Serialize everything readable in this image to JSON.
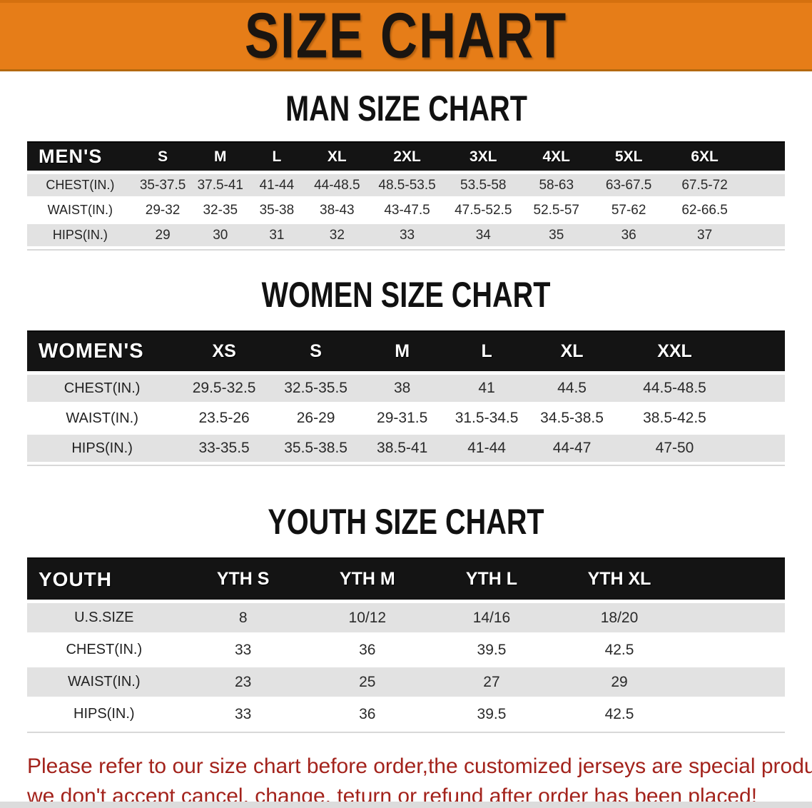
{
  "banner": {
    "title": "SIZE CHART"
  },
  "sections": [
    {
      "key": "mens",
      "heading": "MAN SIZE CHART",
      "header": [
        "MEN'S",
        "S",
        "M",
        "L",
        "XL",
        "2XL",
        "3XL",
        "4XL",
        "5XL",
        "6XL"
      ],
      "rows": [
        {
          "label": "CHEST(IN.)",
          "values": [
            "35-37.5",
            "37.5-41",
            "41-44",
            "44-48.5",
            "48.5-53.5",
            "53.5-58",
            "58-63",
            "63-67.5",
            "67.5-72"
          ]
        },
        {
          "label": "WAIST(IN.)",
          "values": [
            "29-32",
            "32-35",
            "35-38",
            "38-43",
            "43-47.5",
            "47.5-52.5",
            "52.5-57",
            "57-62",
            "62-66.5"
          ]
        },
        {
          "label": "HIPS(IN.)",
          "values": [
            "29",
            "30",
            "31",
            "32",
            "33",
            "34",
            "35",
            "36",
            "37"
          ]
        }
      ]
    },
    {
      "key": "womens",
      "heading": "WOMEN SIZE CHART",
      "header": [
        "WOMEN'S",
        "XS",
        "S",
        "M",
        "L",
        "XL",
        "XXL"
      ],
      "rows": [
        {
          "label": "CHEST(IN.)",
          "values": [
            "29.5-32.5",
            "32.5-35.5",
            "38",
            "41",
            "44.5",
            "44.5-48.5"
          ]
        },
        {
          "label": "WAIST(IN.)",
          "values": [
            "23.5-26",
            "26-29",
            "29-31.5",
            "31.5-34.5",
            "34.5-38.5",
            "38.5-42.5"
          ]
        },
        {
          "label": "HIPS(IN.)",
          "values": [
            "33-35.5",
            "35.5-38.5",
            "38.5-41",
            "41-44",
            "44-47",
            "47-50"
          ]
        }
      ]
    },
    {
      "key": "youth",
      "heading": "YOUTH SIZE CHART",
      "header": [
        "YOUTH",
        "YTH S",
        "YTH M",
        "YTH L",
        "YTH XL"
      ],
      "rows": [
        {
          "label": "U.S.SIZE",
          "values": [
            "8",
            "10/12",
            "14/16",
            "18/20"
          ]
        },
        {
          "label": "CHEST(IN.)",
          "values": [
            "33",
            "36",
            "39.5",
            "42.5"
          ]
        },
        {
          "label": "WAIST(IN.)",
          "values": [
            "23",
            "25",
            "27",
            "29"
          ]
        },
        {
          "label": "HIPS(IN.)",
          "values": [
            "33",
            "36",
            "39.5",
            "42.5"
          ]
        }
      ]
    }
  ],
  "disclaimer": {
    "line1": "Please refer to our size chart before order,the customized jerseys are special products,",
    "line2": "we don't accept cancel, change, teturn or refund after order has been placed!"
  },
  "colors": {
    "banner_bg": "#e67d18",
    "header_bar": "#141414",
    "row_alt_gray": "#e2e2e2",
    "disclaimer_red": "#a3231c"
  }
}
